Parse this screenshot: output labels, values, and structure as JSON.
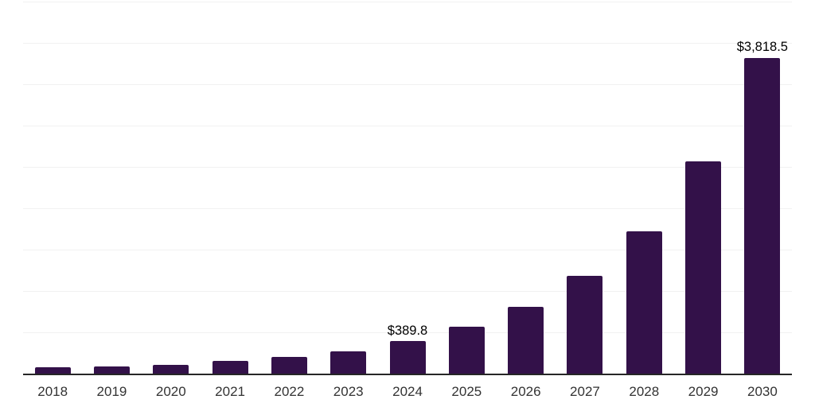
{
  "chart": {
    "background_color": "#ffffff",
    "bar_color": "#331149",
    "grid_color": "#f1f1f1",
    "axis_color": "#262626",
    "tick_label_color": "#333333",
    "data_label_color": "#000000"
  },
  "chart_data": {
    "type": "bar",
    "title": "",
    "xlabel": "",
    "ylabel": "",
    "categories": [
      "2018",
      "2019",
      "2020",
      "2021",
      "2022",
      "2023",
      "2024",
      "2025",
      "2026",
      "2027",
      "2028",
      "2029",
      "2030"
    ],
    "values": [
      75,
      90,
      105,
      150,
      205,
      266,
      389.8,
      567,
      808,
      1180,
      1724,
      2564,
      3818.5
    ],
    "data_labels": {
      "2024": "$389.8",
      "2030": "$3,818.5"
    },
    "ylim": [
      0,
      4500
    ],
    "grid_step": 500,
    "grid_on": true,
    "legend": "none",
    "y_tick_labels_visible": false
  }
}
